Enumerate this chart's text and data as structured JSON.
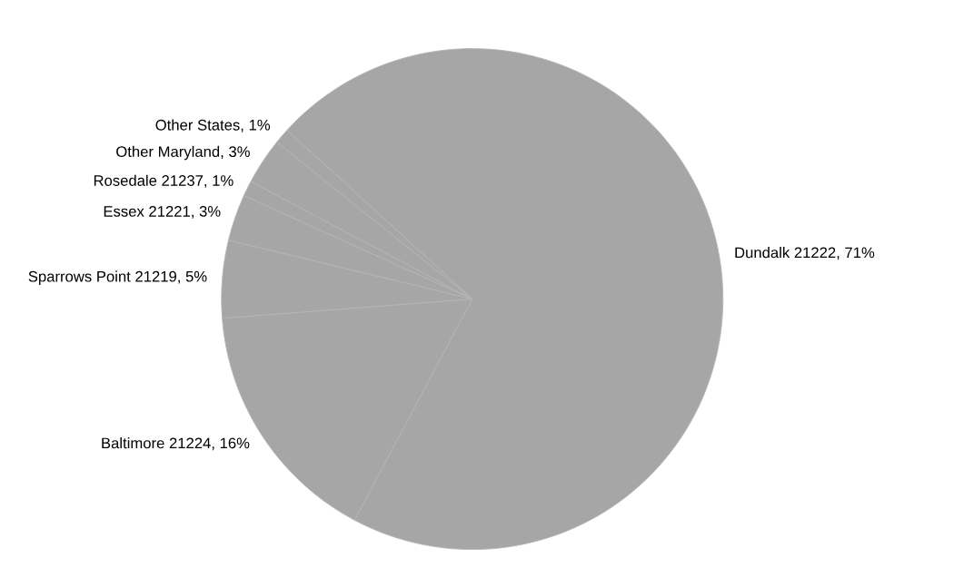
{
  "chart_data": {
    "type": "pie",
    "categories": [
      "Dundalk 21222",
      "Baltimore 21224",
      "Sparrows Point 21219",
      "Essex 21221",
      "Rosedale 21237",
      "Other Maryland",
      "Other States"
    ],
    "values": [
      71,
      16,
      5,
      3,
      1,
      3,
      1
    ],
    "value_labels": [
      "71%",
      "16%",
      "5%",
      "3%",
      "1%",
      "3%",
      "1%"
    ],
    "colors": [
      "#a6a6a6",
      "#a6a6a6",
      "#a6a6a6",
      "#a6a6a6",
      "#a6a6a6",
      "#a6a6a6",
      "#a6a6a6"
    ]
  }
}
